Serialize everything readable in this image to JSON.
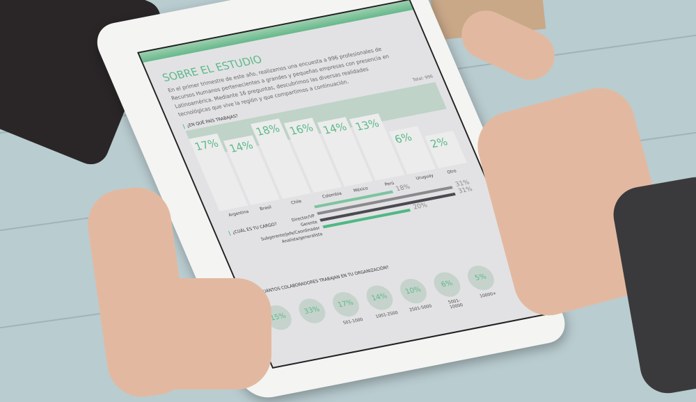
{
  "page": {
    "title": "SOBRE EL ESTUDIO",
    "intro": "En el primer trimestre de este año, realizamos una encuesta a 996 profesionales de Recursos Humanos pertenecientes a grandes y pequeñas empresas con presencia en Latinoamérica. Mediante 16 preguntas, descubrimos las diversas realidades tecnológicas que vive la región y que compartimos a continuación.",
    "total": "Total: 996"
  },
  "chart_data": [
    {
      "type": "bar",
      "title": "¿EN QUÉ PAÍS TRABAJAS?",
      "categories": [
        "Argentina",
        "Brasil",
        "Chile",
        "Colombia",
        "México",
        "Perú",
        "Uruguay",
        "Otro"
      ],
      "values": [
        17,
        14,
        18,
        16,
        14,
        13,
        6,
        2
      ],
      "labels": [
        "17%",
        "14%",
        "18%",
        "16%",
        "14%",
        "13%",
        "6%",
        "2%"
      ]
    },
    {
      "type": "bar",
      "title": "¿CUÁL ES TU CARGO?",
      "categories": [
        "Director/VP",
        "Gerente",
        "Subgerente/Jefe/Coordinador",
        "Analista/generalista"
      ],
      "values": [
        18,
        31,
        31,
        20
      ],
      "labels": [
        "18%",
        "31%",
        "31%",
        "20%"
      ],
      "colors": [
        "#7dc4a0",
        "#8a8a8c",
        "#4a4a50",
        "#4fb884"
      ]
    },
    {
      "type": "bar",
      "title": "¿CUÁNTOS COLABORADORES TRABAJAN EN TU ORGANIZACIÓN?",
      "categories": [
        "",
        "",
        "501-1000",
        "1001-2500",
        "2501-5000",
        "5001-10000",
        "10000+"
      ],
      "values": [
        15,
        33,
        17,
        14,
        10,
        6,
        5
      ],
      "labels": [
        "15%",
        "33%",
        "17%",
        "14%",
        "10%",
        "6%",
        "5%"
      ]
    }
  ]
}
